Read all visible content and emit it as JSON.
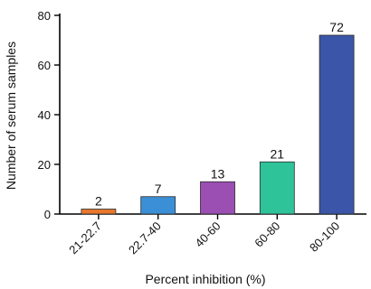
{
  "chart_data": {
    "type": "bar",
    "categories": [
      "21-22.7",
      "22.7-40",
      "40-60",
      "60-80",
      "80-100"
    ],
    "values": [
      2,
      7,
      13,
      21,
      72
    ],
    "data_labels": [
      "2",
      "7",
      "13",
      "21",
      "72"
    ],
    "colors": [
      "#e8772e",
      "#3b8fd6",
      "#9b4fb2",
      "#2fc39a",
      "#3b56a8"
    ],
    "title": "",
    "xlabel": "Percent inhibition (%)",
    "ylabel": "Number of serum samples",
    "ylim": [
      0,
      80
    ],
    "yticks": [
      0,
      20,
      40,
      60,
      80
    ],
    "ytick_labels": [
      "0",
      "20",
      "40",
      "60",
      "80"
    ],
    "grid": false,
    "legend": "none"
  }
}
